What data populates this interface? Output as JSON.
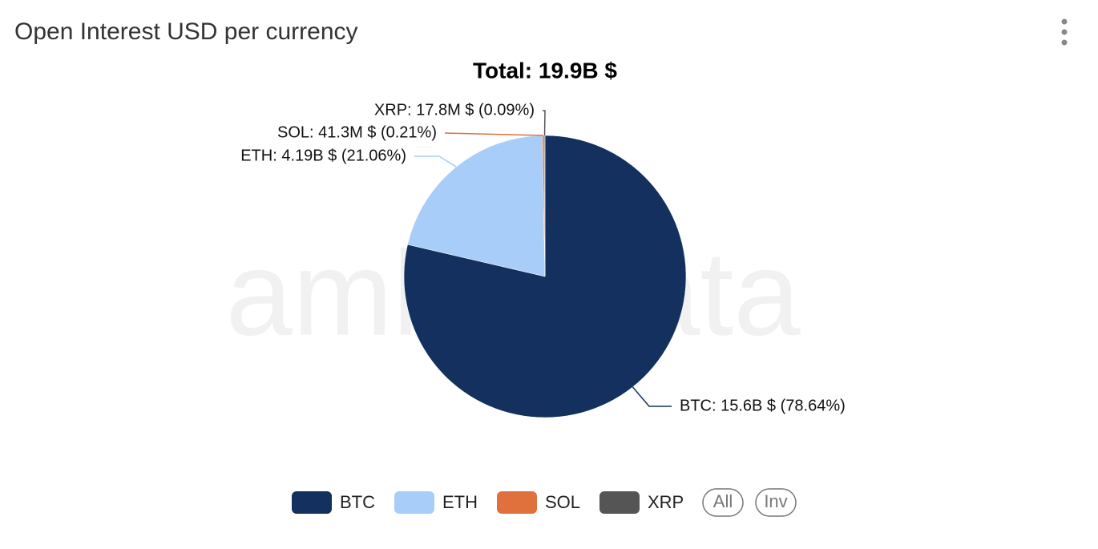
{
  "chart_data": {
    "type": "pie",
    "title": "Open Interest USD per currency",
    "subtitle": "Total: 19.9B $",
    "watermark": "amberdata",
    "categories": [
      "BTC",
      "ETH",
      "SOL",
      "XRP"
    ],
    "values": [
      78.64,
      21.06,
      0.21,
      0.09
    ],
    "value_labels": [
      "BTC: 15.6B $ (78.64%)",
      "ETH: 4.19B $ (21.06%)",
      "SOL: 41.3M $ (0.21%)",
      "XRP: 17.8M $ (0.09%)"
    ],
    "colors": [
      "#14305e",
      "#a8cdf8",
      "#e0703c",
      "#555555"
    ],
    "legend_buttons": [
      "All",
      "Inv"
    ]
  }
}
